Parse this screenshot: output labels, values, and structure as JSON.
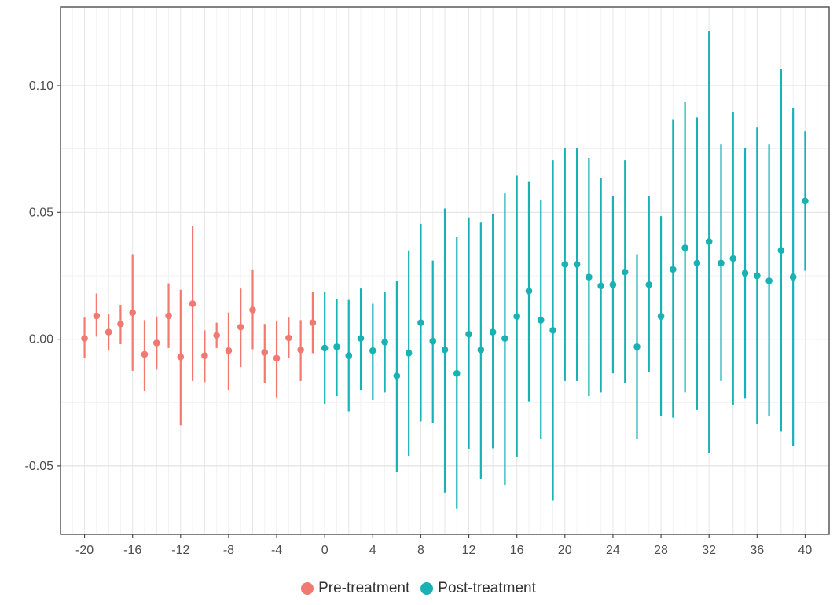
{
  "chart_data": {
    "type": "scatter",
    "subtype": "point-range",
    "title": "",
    "xlabel": "",
    "ylabel": "",
    "xlim": [
      -22,
      42
    ],
    "ylim": [
      -0.077,
      0.131
    ],
    "x_ticks": [
      -20,
      -16,
      -12,
      -8,
      -4,
      0,
      4,
      8,
      12,
      16,
      20,
      24,
      28,
      32,
      36,
      40
    ],
    "x_tick_labels": [
      "-20",
      "-16",
      "-12",
      "-8",
      "-4",
      "0",
      "4",
      "8",
      "12",
      "16",
      "20",
      "24",
      "28",
      "32",
      "36",
      "40"
    ],
    "y_ticks": [
      -0.05,
      0,
      0.05,
      0.1
    ],
    "y_tick_labels": [
      "-0.05",
      "0.00",
      "0.05",
      "0.10"
    ],
    "grid": true,
    "legend_position": "bottom",
    "series": [
      {
        "name": "Pre-treatment",
        "color": "#f07a72",
        "points": [
          {
            "x": -20,
            "y": 0.0003,
            "lo": -0.0075,
            "hi": 0.0085
          },
          {
            "x": -19,
            "y": 0.0092,
            "lo": 0.001,
            "hi": 0.018
          },
          {
            "x": -18,
            "y": 0.0028,
            "lo": -0.0045,
            "hi": 0.01
          },
          {
            "x": -17,
            "y": 0.006,
            "lo": -0.002,
            "hi": 0.0135
          },
          {
            "x": -16,
            "y": 0.0105,
            "lo": -0.0125,
            "hi": 0.0335
          },
          {
            "x": -15,
            "y": -0.006,
            "lo": -0.0205,
            "hi": 0.0075
          },
          {
            "x": -14,
            "y": -0.0015,
            "lo": -0.012,
            "hi": 0.009
          },
          {
            "x": -13,
            "y": 0.0092,
            "lo": -0.0035,
            "hi": 0.022
          },
          {
            "x": -12,
            "y": -0.007,
            "lo": -0.034,
            "hi": 0.0195
          },
          {
            "x": -11,
            "y": 0.014,
            "lo": -0.0165,
            "hi": 0.0445
          },
          {
            "x": -10,
            "y": -0.0065,
            "lo": -0.017,
            "hi": 0.0035
          },
          {
            "x": -9,
            "y": 0.0015,
            "lo": -0.0035,
            "hi": 0.0065
          },
          {
            "x": -8,
            "y": -0.0045,
            "lo": -0.02,
            "hi": 0.0105
          },
          {
            "x": -7,
            "y": 0.0048,
            "lo": -0.011,
            "hi": 0.02
          },
          {
            "x": -6,
            "y": 0.0115,
            "lo": -0.004,
            "hi": 0.0275
          },
          {
            "x": -5,
            "y": -0.0052,
            "lo": -0.0175,
            "hi": 0.006
          },
          {
            "x": -4,
            "y": -0.0075,
            "lo": -0.023,
            "hi": 0.007
          },
          {
            "x": -3,
            "y": 0.0005,
            "lo": -0.0075,
            "hi": 0.0085
          },
          {
            "x": -2,
            "y": -0.0042,
            "lo": -0.0165,
            "hi": 0.0075
          },
          {
            "x": -1,
            "y": 0.0065,
            "lo": -0.0055,
            "hi": 0.0185
          }
        ]
      },
      {
        "name": "Post-treatment",
        "color": "#19b2b4",
        "points": [
          {
            "x": 0,
            "y": -0.0035,
            "lo": -0.0255,
            "hi": 0.0185
          },
          {
            "x": 1,
            "y": -0.003,
            "lo": -0.0225,
            "hi": 0.016
          },
          {
            "x": 2,
            "y": -0.0065,
            "lo": -0.0285,
            "hi": 0.0155
          },
          {
            "x": 3,
            "y": 0.0003,
            "lo": -0.02,
            "hi": 0.02
          },
          {
            "x": 4,
            "y": -0.0045,
            "lo": -0.024,
            "hi": 0.014
          },
          {
            "x": 5,
            "y": -0.0012,
            "lo": -0.021,
            "hi": 0.0185
          },
          {
            "x": 6,
            "y": -0.0145,
            "lo": -0.0525,
            "hi": 0.023
          },
          {
            "x": 7,
            "y": -0.0055,
            "lo": -0.046,
            "hi": 0.035
          },
          {
            "x": 8,
            "y": 0.0065,
            "lo": -0.0325,
            "hi": 0.0455
          },
          {
            "x": 9,
            "y": -0.0008,
            "lo": -0.033,
            "hi": 0.031
          },
          {
            "x": 10,
            "y": -0.0042,
            "lo": -0.0605,
            "hi": 0.0515
          },
          {
            "x": 11,
            "y": -0.0135,
            "lo": -0.067,
            "hi": 0.0405
          },
          {
            "x": 12,
            "y": 0.002,
            "lo": -0.0435,
            "hi": 0.048
          },
          {
            "x": 13,
            "y": -0.0042,
            "lo": -0.055,
            "hi": 0.046
          },
          {
            "x": 14,
            "y": 0.0028,
            "lo": -0.043,
            "hi": 0.0495
          },
          {
            "x": 15,
            "y": 0.0003,
            "lo": -0.0575,
            "hi": 0.0575
          },
          {
            "x": 16,
            "y": 0.009,
            "lo": -0.0465,
            "hi": 0.0645
          },
          {
            "x": 17,
            "y": 0.019,
            "lo": -0.0245,
            "hi": 0.062
          },
          {
            "x": 18,
            "y": 0.0075,
            "lo": -0.0395,
            "hi": 0.055
          },
          {
            "x": 19,
            "y": 0.0035,
            "lo": -0.0635,
            "hi": 0.0705
          },
          {
            "x": 20,
            "y": 0.0295,
            "lo": -0.0165,
            "hi": 0.0755
          },
          {
            "x": 21,
            "y": 0.0295,
            "lo": -0.0165,
            "hi": 0.0755
          },
          {
            "x": 22,
            "y": 0.0245,
            "lo": -0.0225,
            "hi": 0.0715
          },
          {
            "x": 23,
            "y": 0.021,
            "lo": -0.021,
            "hi": 0.0635
          },
          {
            "x": 24,
            "y": 0.0215,
            "lo": -0.0135,
            "hi": 0.0565
          },
          {
            "x": 25,
            "y": 0.0265,
            "lo": -0.0175,
            "hi": 0.0705
          },
          {
            "x": 26,
            "y": -0.003,
            "lo": -0.0395,
            "hi": 0.0335
          },
          {
            "x": 27,
            "y": 0.0215,
            "lo": -0.013,
            "hi": 0.0565
          },
          {
            "x": 28,
            "y": 0.009,
            "lo": -0.0305,
            "hi": 0.0485
          },
          {
            "x": 29,
            "y": 0.0275,
            "lo": -0.031,
            "hi": 0.0865
          },
          {
            "x": 30,
            "y": 0.036,
            "lo": -0.021,
            "hi": 0.0935
          },
          {
            "x": 31,
            "y": 0.03,
            "lo": -0.028,
            "hi": 0.0875
          },
          {
            "x": 32,
            "y": 0.0385,
            "lo": -0.045,
            "hi": 0.1215
          },
          {
            "x": 33,
            "y": 0.03,
            "lo": -0.0165,
            "hi": 0.077
          },
          {
            "x": 34,
            "y": 0.0318,
            "lo": -0.026,
            "hi": 0.0895
          },
          {
            "x": 35,
            "y": 0.026,
            "lo": -0.0235,
            "hi": 0.0755
          },
          {
            "x": 36,
            "y": 0.025,
            "lo": -0.0335,
            "hi": 0.0835
          },
          {
            "x": 37,
            "y": 0.023,
            "lo": -0.0305,
            "hi": 0.077
          },
          {
            "x": 38,
            "y": 0.035,
            "lo": -0.0365,
            "hi": 0.1065
          },
          {
            "x": 39,
            "y": 0.0245,
            "lo": -0.042,
            "hi": 0.091
          },
          {
            "x": 40,
            "y": 0.0545,
            "lo": 0.027,
            "hi": 0.082
          }
        ]
      }
    ]
  },
  "legend": [
    {
      "label": "Pre-treatment",
      "color": "#f07a72"
    },
    {
      "label": "Post-treatment",
      "color": "#19b2b4"
    }
  ]
}
